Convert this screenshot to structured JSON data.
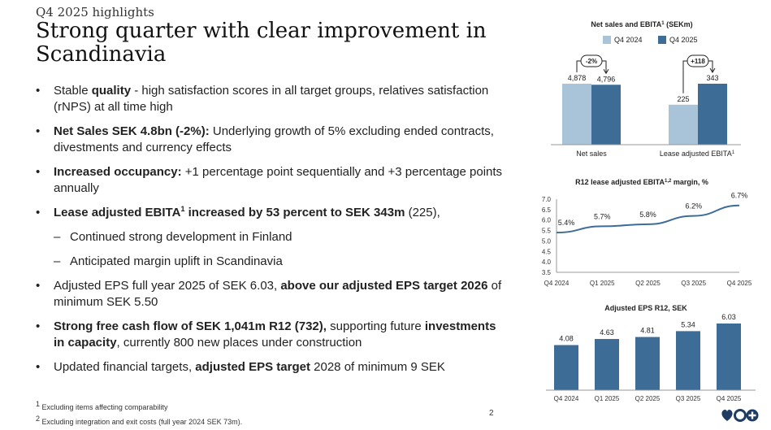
{
  "header": {
    "eyebrow": "Q4 2025 highlights",
    "title": "Strong quarter with clear improvement in Scandinavia"
  },
  "bullets": {
    "b1": {
      "pre": "Stable ",
      "bold": "quality",
      "post": " - high satisfaction scores in all target groups, relatives satisfaction (rNPS) at all time high"
    },
    "b2": {
      "bold": "Net Sales SEK 4.8bn (-2%):",
      "post": " Underlying growth of 5% excluding ended contracts, divestments and currency effects"
    },
    "b3": {
      "bold": "Increased occupancy:",
      "post": " +1 percentage point sequentially and +3 percentage points annually"
    },
    "b4": {
      "bold_a": "Lease adjusted EBITA",
      "sup": "1",
      "bold_b": " increased by 53 percent to SEK 343m",
      "post": " (225),"
    },
    "b4_sub1": "Continued strong development in Finland",
    "b4_sub2": "Anticipated margin uplift in Scandinavia",
    "b5": {
      "pre": "Adjusted EPS full year 2025 of SEK 6.03, ",
      "bold": "above our adjusted EPS target 2026",
      "post": " of minimum SEK 5.50"
    },
    "b6": {
      "bold": "Strong free cash flow of SEK 1,041m R12 (732),",
      "mid": " supporting future ",
      "bold2": "investments in capacity",
      "post": ", currently 800 new places under construction"
    },
    "b7": {
      "pre": "Updated financial targets, ",
      "bold": "adjusted EPS target",
      "post": " 2028 of minimum 9 SEK"
    }
  },
  "footnotes": {
    "f1_sup": "1",
    "f1": "Excluding items affecting comparability",
    "f2_sup": "2",
    "f2": "Excluding integration and exit costs (full year 2024 SEK 73m)."
  },
  "page_number": "2",
  "colors": {
    "light": "#a9c4d9",
    "dark": "#3d6d96",
    "line": "#3d6d96"
  },
  "chart_data": [
    {
      "type": "bar",
      "title": "Net sales and EBITA",
      "title_sup": "1",
      "title_unit": " (SEKm)",
      "legend": [
        "Q4 2024",
        "Q4 2025"
      ],
      "categories": [
        "Net sales",
        "Lease adjusted EBITA"
      ],
      "category_sup": [
        "",
        "1"
      ],
      "series": [
        {
          "name": "Q4 2024",
          "values": [
            4878,
            225
          ],
          "labels": [
            "4,878",
            "225"
          ]
        },
        {
          "name": "Q4 2025",
          "values": [
            4796,
            343
          ],
          "labels": [
            "4,796",
            "343"
          ]
        }
      ],
      "annotations": [
        "-2%",
        "+118"
      ]
    },
    {
      "type": "line",
      "title": "R12 lease adjusted EBITA",
      "title_sup": "1,2",
      "title_unit": " margin, %",
      "x": [
        "Q4 2024",
        "Q1 2025",
        "Q2 2025",
        "Q3 2025",
        "Q4 2025"
      ],
      "values": [
        5.4,
        5.7,
        5.8,
        6.2,
        6.7
      ],
      "labels": [
        "5.4%",
        "5.7%",
        "5.8%",
        "6.2%",
        "6.7%"
      ],
      "ylim": [
        3.5,
        7.0
      ],
      "yticks": [
        "7.0",
        "6.5",
        "6.0",
        "5.5",
        "5.0",
        "4.5",
        "4.0",
        "3.5"
      ]
    },
    {
      "type": "bar",
      "title": "Adjusted EPS R12, SEK",
      "categories": [
        "Q4 2024",
        "Q1 2025",
        "Q2 2025",
        "Q3 2025",
        "Q4 2025"
      ],
      "values": [
        4.08,
        4.63,
        4.81,
        5.34,
        6.03
      ],
      "labels": [
        "4.08",
        "4.63",
        "4.81",
        "5.34",
        "6.03"
      ]
    }
  ]
}
